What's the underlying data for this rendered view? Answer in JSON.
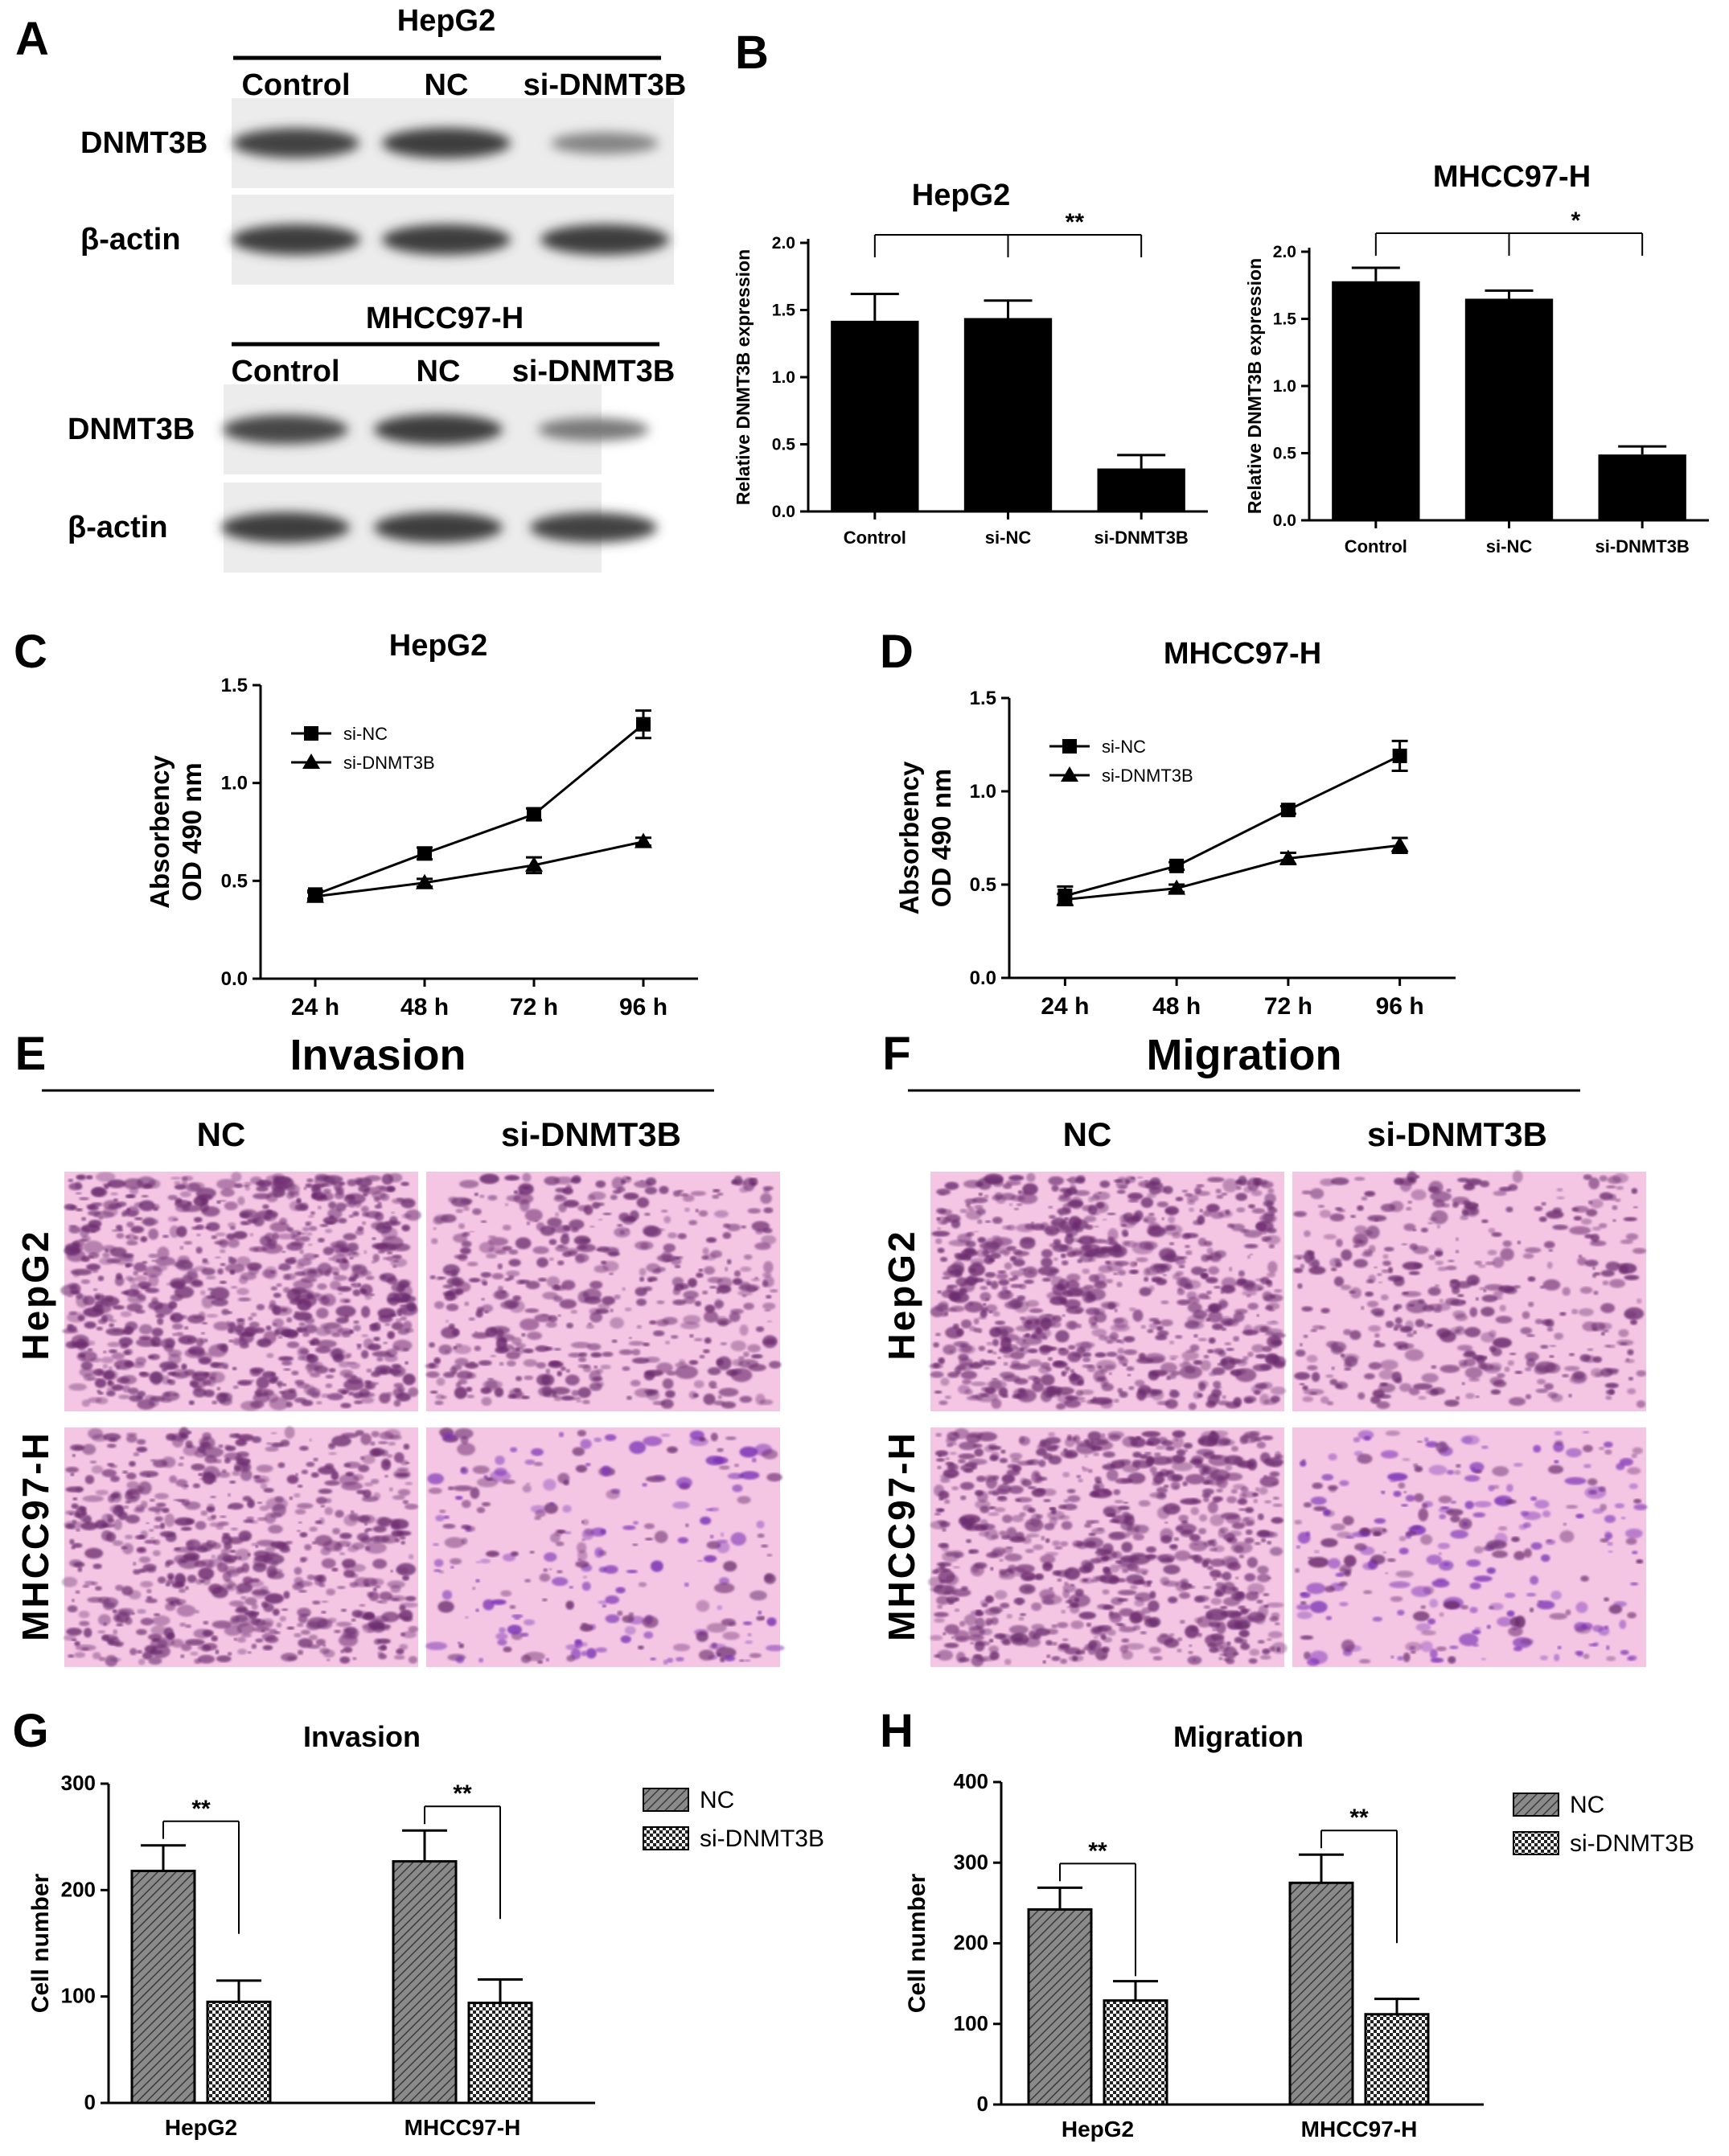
{
  "panel_letters": [
    "A",
    "B",
    "C",
    "D",
    "E",
    "F",
    "G",
    "H"
  ],
  "colors": {
    "bar_fill": "#000000",
    "line": "#000000",
    "stain_bg": "#f4c6e4",
    "stain_cell": "#6b2c6e",
    "stain_cell_violet": "#7a2fb5",
    "nc_hatch": "#8a8a8a"
  },
  "blot": {
    "hepg2": {
      "title": "HepG2",
      "lanes": [
        "Control",
        "NC",
        "si-DNMT3B"
      ],
      "rows": [
        "DNMT3B",
        "β-actin"
      ],
      "dnmt3b_intensity": [
        0.95,
        1.0,
        0.35
      ],
      "actin_intensity": [
        1.0,
        1.0,
        1.0
      ]
    },
    "mhcc": {
      "title": "MHCC97-H",
      "lanes": [
        "Control",
        "NC",
        "si-DNMT3B"
      ],
      "rows": [
        "DNMT3B",
        "β-actin"
      ],
      "dnmt3b_intensity": [
        0.9,
        1.0,
        0.45
      ],
      "actin_intensity": [
        1.0,
        1.0,
        0.95
      ]
    }
  },
  "micro": {
    "e_title": "Invasion",
    "f_title": "Migration",
    "col_labels": [
      "NC",
      "si-DNMT3B"
    ],
    "row_labels": [
      "HepG2",
      "MHCC97-H"
    ]
  },
  "chart_data": [
    {
      "id": "B1",
      "type": "bar",
      "title": "HepG2",
      "ylabel": "Relative DNMT3B expression",
      "categories": [
        "Control",
        "si-NC",
        "si-DNMT3B"
      ],
      "values": [
        1.42,
        1.44,
        0.32
      ],
      "errors": [
        0.2,
        0.13,
        0.1
      ],
      "ylim": [
        0,
        2.0
      ],
      "yticks": [
        "0.0",
        "0.5",
        "1.0",
        "1.5",
        "2.0"
      ],
      "significance": [
        {
          "from": 0,
          "to": 2,
          "mid": 1,
          "label": "**"
        }
      ]
    },
    {
      "id": "B2",
      "type": "bar",
      "title": "MHCC97-H",
      "ylabel": "Relative DNMT3B expression",
      "categories": [
        "Control",
        "si-NC",
        "si-DNMT3B"
      ],
      "values": [
        1.78,
        1.65,
        0.49
      ],
      "errors": [
        0.1,
        0.06,
        0.06
      ],
      "ylim": [
        0,
        2.0
      ],
      "yticks": [
        "0.0",
        "0.5",
        "1.0",
        "1.5",
        "2.0"
      ],
      "significance": [
        {
          "from": 0,
          "to": 2,
          "mid": 1,
          "label": "*"
        }
      ]
    },
    {
      "id": "C",
      "type": "line",
      "title": "HepG2",
      "ylabel_lines": [
        "Absorbency",
        "OD 490 nm"
      ],
      "x": [
        "24 h",
        "48 h",
        "72 h",
        "96 h"
      ],
      "ylim": [
        0,
        1.5
      ],
      "yticks": [
        "0.0",
        "0.5",
        "1.0",
        "1.5"
      ],
      "legend_position": "top-left",
      "series": [
        {
          "name": "si-NC",
          "marker": "square",
          "values": [
            0.43,
            0.64,
            0.84,
            1.3
          ],
          "errors": [
            0.02,
            0.03,
            0.03,
            0.07
          ]
        },
        {
          "name": "si-DNMT3B",
          "marker": "triangle",
          "values": [
            0.42,
            0.49,
            0.58,
            0.7
          ],
          "errors": [
            0.02,
            0.02,
            0.04,
            0.02
          ]
        }
      ]
    },
    {
      "id": "D",
      "type": "line",
      "title": "MHCC97-H",
      "ylabel_lines": [
        "Absorbency",
        "OD 490 nm"
      ],
      "x": [
        "24 h",
        "48 h",
        "72 h",
        "96 h"
      ],
      "ylim": [
        0,
        1.5
      ],
      "yticks": [
        "0.0",
        "0.5",
        "1.0",
        "1.5"
      ],
      "legend_position": "top-left",
      "series": [
        {
          "name": "si-NC",
          "marker": "square",
          "values": [
            0.44,
            0.6,
            0.9,
            1.19
          ],
          "errors": [
            0.05,
            0.02,
            0.02,
            0.08
          ]
        },
        {
          "name": "si-DNMT3B",
          "marker": "triangle",
          "values": [
            0.42,
            0.48,
            0.64,
            0.71
          ],
          "errors": [
            0.03,
            0.02,
            0.03,
            0.04
          ]
        }
      ]
    },
    {
      "id": "G",
      "type": "bar",
      "title": "Invasion",
      "ylabel": "Cell number",
      "categories": [
        "HepG2",
        "MHCC97-H"
      ],
      "ylim": [
        0,
        300
      ],
      "yticks": [
        "0",
        "100",
        "200",
        "300"
      ],
      "legend_position": "right",
      "series": [
        {
          "name": "NC",
          "values": [
            218,
            227
          ],
          "errors": [
            24,
            29
          ]
        },
        {
          "name": "si-DNMT3B",
          "values": [
            95,
            94
          ],
          "errors": [
            20,
            22
          ]
        }
      ],
      "significance": [
        "**",
        "**"
      ]
    },
    {
      "id": "H",
      "type": "bar",
      "title": "Migration",
      "ylabel": "Cell number",
      "categories": [
        "HepG2",
        "MHCC97-H"
      ],
      "ylim": [
        0,
        400
      ],
      "yticks": [
        "0",
        "100",
        "200",
        "300",
        "400"
      ],
      "legend_position": "right",
      "series": [
        {
          "name": "NC",
          "values": [
            242,
            275
          ],
          "errors": [
            27,
            35
          ]
        },
        {
          "name": "si-DNMT3B",
          "values": [
            129,
            112
          ],
          "errors": [
            24,
            19
          ]
        }
      ],
      "significance": [
        "**",
        "**"
      ]
    }
  ]
}
